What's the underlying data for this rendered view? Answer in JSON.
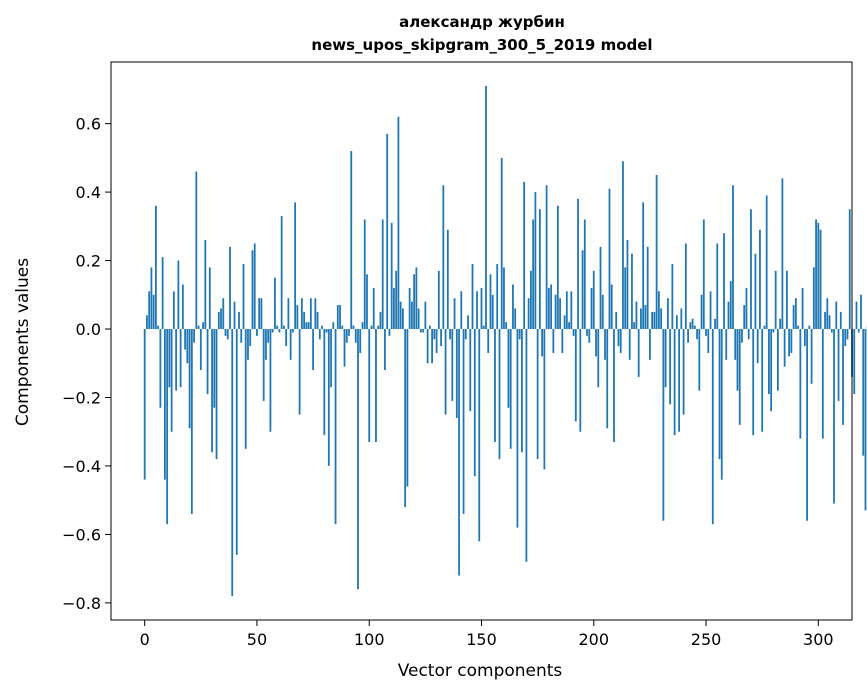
{
  "chart_data": {
    "type": "bar",
    "title": "александр журбин",
    "subtitle": "news_upos_skipgram_300_5_2019 model",
    "xlabel": "Vector components",
    "ylabel": "Components values",
    "xlim": [
      -15,
      315
    ],
    "ylim": [
      -0.85,
      0.78
    ],
    "xticks": [
      0,
      50,
      100,
      150,
      200,
      250,
      300
    ],
    "yticks": [
      -0.8,
      -0.6,
      -0.4,
      -0.2,
      0.0,
      0.2,
      0.4,
      0.6
    ],
    "ytick_labels": [
      "−0.8",
      "−0.6",
      "−0.4",
      "−0.2",
      "0.0",
      "0.2",
      "0.4",
      "0.6"
    ],
    "grid": false,
    "bar_color": "#1f77b4",
    "values": [
      -0.44,
      0.04,
      0.11,
      0.18,
      0.1,
      0.36,
      0.01,
      -0.23,
      0.21,
      -0.44,
      -0.57,
      -0.17,
      -0.3,
      0.11,
      -0.18,
      0.2,
      -0.17,
      0.13,
      -0.06,
      -0.1,
      -0.29,
      -0.54,
      -0.04,
      0.46,
      0.01,
      -0.12,
      0.02,
      0.26,
      -0.19,
      0.18,
      -0.36,
      -0.23,
      -0.38,
      0.05,
      0.06,
      0.09,
      -0.02,
      -0.03,
      0.24,
      -0.78,
      0.08,
      -0.66,
      0.05,
      -0.04,
      0.19,
      -0.35,
      -0.09,
      -0.05,
      0.23,
      0.25,
      -0.02,
      0.09,
      0.09,
      -0.21,
      -0.09,
      -0.04,
      -0.3,
      -0.01,
      0.15,
      0.01,
      -0.01,
      0.33,
      0.01,
      -0.05,
      0.09,
      -0.09,
      -0.01,
      0.37,
      0.07,
      -0.25,
      0.09,
      0.05,
      0.02,
      0.02,
      0.09,
      -0.12,
      0.09,
      0.05,
      -0.03,
      0.01,
      -0.31,
      -0.01,
      -0.4,
      -0.17,
      0.02,
      -0.57,
      0.07,
      0.07,
      0.01,
      -0.11,
      -0.04,
      -0.02,
      0.52,
      0.01,
      -0.04,
      -0.76,
      -0.07,
      0.02,
      0.32,
      0.16,
      -0.33,
      0.01,
      0.12,
      -0.33,
      0.01,
      0.05,
      0.32,
      -0.12,
      0.57,
      -0.02,
      0.31,
      0.12,
      0.17,
      0.62,
      0.08,
      0.06,
      -0.52,
      -0.46,
      0.12,
      0.08,
      0.16,
      0.18,
      0.06,
      -0.01,
      -0.01,
      0.08,
      -0.1,
      0.01,
      -0.1,
      -0.03,
      -0.07,
      0.17,
      -0.05,
      0.42,
      -0.25,
      0.29,
      -0.03,
      -0.21,
      0.09,
      -0.26,
      -0.72,
      0.11,
      -0.54,
      -0.03,
      0.04,
      -0.24,
      0.19,
      -0.43,
      0.11,
      -0.62,
      0.12,
      0.01,
      0.71,
      -0.07,
      0.16,
      0.1,
      -0.33,
      0.19,
      -0.38,
      0.5,
      0.18,
      0.02,
      -0.23,
      -0.35,
      0.13,
      0.06,
      -0.58,
      -0.03,
      -0.36,
      0.43,
      -0.68,
      0.09,
      0.17,
      0.32,
      0.4,
      -0.38,
      0.35,
      -0.08,
      -0.41,
      0.42,
      0.12,
      0.13,
      -0.07,
      0.1,
      0.36,
      0.09,
      -0.07,
      0.04,
      0.11,
      0.02,
      0.11,
      -0.02,
      -0.27,
      0.38,
      -0.3,
      0.23,
      0.32,
      -0.02,
      -0.04,
      0.12,
      0.17,
      -0.08,
      -0.17,
      0.24,
      0.1,
      -0.09,
      -0.29,
      0.41,
      0.13,
      -0.33,
      0.05,
      -0.05,
      -0.07,
      0.49,
      0.18,
      0.26,
      -0.09,
      0.22,
      0.02,
      0.08,
      -0.14,
      0.06,
      0.37,
      0.07,
      0.24,
      -0.09,
      0.05,
      0.05,
      0.45,
      0.11,
      0.06,
      -0.56,
      -0.17,
      0.09,
      -0.22,
      0.19,
      -0.31,
      0.04,
      -0.3,
      0.06,
      -0.25,
      0.25,
      -0.04,
      0.02,
      0.03,
      0.01,
      -0.03,
      -0.18,
      0.1,
      0.32,
      -0.02,
      -0.07,
      0.11,
      -0.57,
      0.03,
      0.25,
      -0.38,
      -0.44,
      0.28,
      -0.09,
      0.08,
      0.14,
      0.42,
      -0.09,
      -0.18,
      -0.28,
      -0.04,
      0.07,
      0.12,
      -0.03,
      0.35,
      -0.31,
      0.22,
      -0.1,
      0.29,
      -0.3,
      0.01,
      0.39,
      -0.19,
      -0.24,
      -0.01,
      0.17,
      -0.18,
      0.03,
      0.44,
      -0.11,
      0.17,
      -0.08,
      -0.07,
      0.07,
      0.09,
      0.01,
      -0.32,
      0.12,
      -0.05,
      -0.56,
      0.01,
      -0.16,
      0.18,
      0.32,
      0.31,
      0.29,
      -0.32,
      0.05,
      0.09,
      0.04,
      -0.01,
      -0.51,
      0.08,
      -0.21,
      0.05,
      -0.28,
      -0.05,
      -0.03,
      0.35,
      -0.14,
      -0.19,
      0.08,
      -0.01,
      0.1,
      -0.37,
      -0.53,
      0.01,
      0.1,
      0.17
    ]
  }
}
